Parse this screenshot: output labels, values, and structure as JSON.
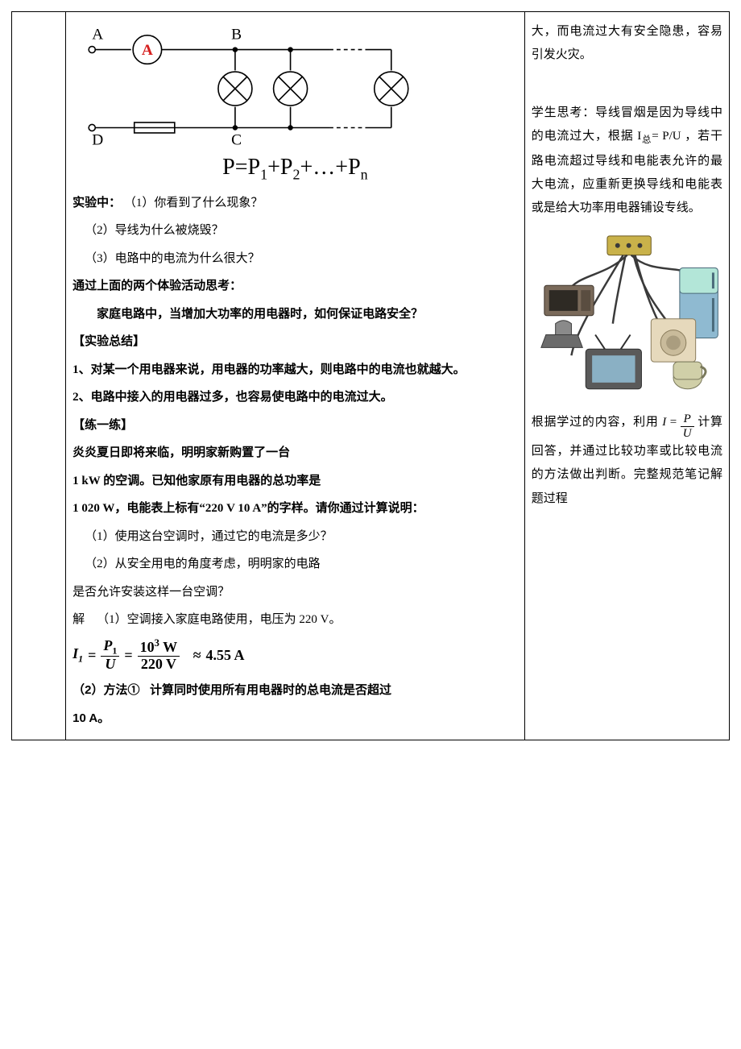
{
  "circuit": {
    "labels": {
      "A": "A",
      "B": "B",
      "C": "C",
      "D": "D"
    },
    "stroke": "#000000",
    "stroke_width": 2,
    "ammeter_letter": "A",
    "ammeter_color": "#d6201f",
    "bulb_count": 3
  },
  "formula_big": {
    "text_html": "P=P<sub>1</sub>+P<sub>2</sub>+…+P<sub>n</sub>",
    "fontsize": 28
  },
  "main": {
    "exp_header": "实验中：",
    "q1": "（1）你看到了什么现象？",
    "q2": "（2）导线为什么被烧毁？",
    "q3": "（3）电路中的电流为什么很大？",
    "think_header": "通过上面的两个体验活动思考：",
    "think_body": "家庭电路中，当增加大功率的用电器时，如何保证电路安全？",
    "summary_tag": "【实验总结】",
    "summary1_num": "1、",
    "summary1": "对某一个用电器来说，用电器的功率越大，则电路中的电流也就越大。",
    "summary2_num": "2、",
    "summary2": "电路中接入的用电器过多，也容易使电路中的电流过大。",
    "practice_tag": "【练一练】",
    "problem_l1": "炎炎夏日即将来临，明明家新购置了一台",
    "problem_l2": "1 kW 的空调。已知他家原有用电器的总功率是",
    "problem_l3": "1 020 W，电能表上标有“220 V 10 A”的字样。请你通过计算说明：",
    "sub_q1": "（1）使用这台空调时，通过它的电流是多少？",
    "sub_q2_a": "（2）从安全用电的角度考虑，明明家的电路",
    "sub_q2_b": "是否允许安装这样一台空调？",
    "sol_label": "解",
    "sol_1": "（1）空调接入家庭电路使用，电压为 220 V。",
    "eq": {
      "lhs": "I",
      "lhs_sub": "1",
      "eq1": "=",
      "frac1_num": "P",
      "frac1_num_sub": "1",
      "frac1_den": "U",
      "eq2": "=",
      "frac2_num_html": "10<sup>3</sup> W",
      "frac2_den": "220 V",
      "approx": "≈",
      "rhs": "4.55 A"
    },
    "sol_2a": "（2）方法①",
    "sol_2b": "计算同时使用所有用电器时的总电流是否超过",
    "sol_2c": "10 A。"
  },
  "side": {
    "p1": "大，而电流过大有安全隐患，容易引发火灾。",
    "p2_a": "学生思考：导线冒烟是因为导线中的电流过大，根据 I",
    "p2_sub": "总",
    "p2_b": "= P/U ，若干路电流超过导线和电能表允许的最大电流，应重新更换导线和电能表或是给大功率用电器铺设专线。",
    "p3_a": "根据学过的内容，利用 ",
    "p3_eq_lhs": "I",
    "p3_eq_eq": "=",
    "p3_eq_num": "P",
    "p3_eq_den": "U",
    "p3_b": " 计算回答，并通过比较功率或比较电流的方法做出判断。完整规范笔记解题过程"
  },
  "appliance_svg": {
    "bg": "#ffffff",
    "outlet": "#c9b24a",
    "fridge_door": "#b3e6d8",
    "fridge_body": "#8fbad1",
    "microwave": "#7a6a5a",
    "washer": "#e6d9bc",
    "tv_screen": "#8ab0c4",
    "tv_body": "#5a5a5a",
    "iron": "#6b6b6b",
    "kettle": "#d0cfa8",
    "cord": "#3a3a3a"
  }
}
